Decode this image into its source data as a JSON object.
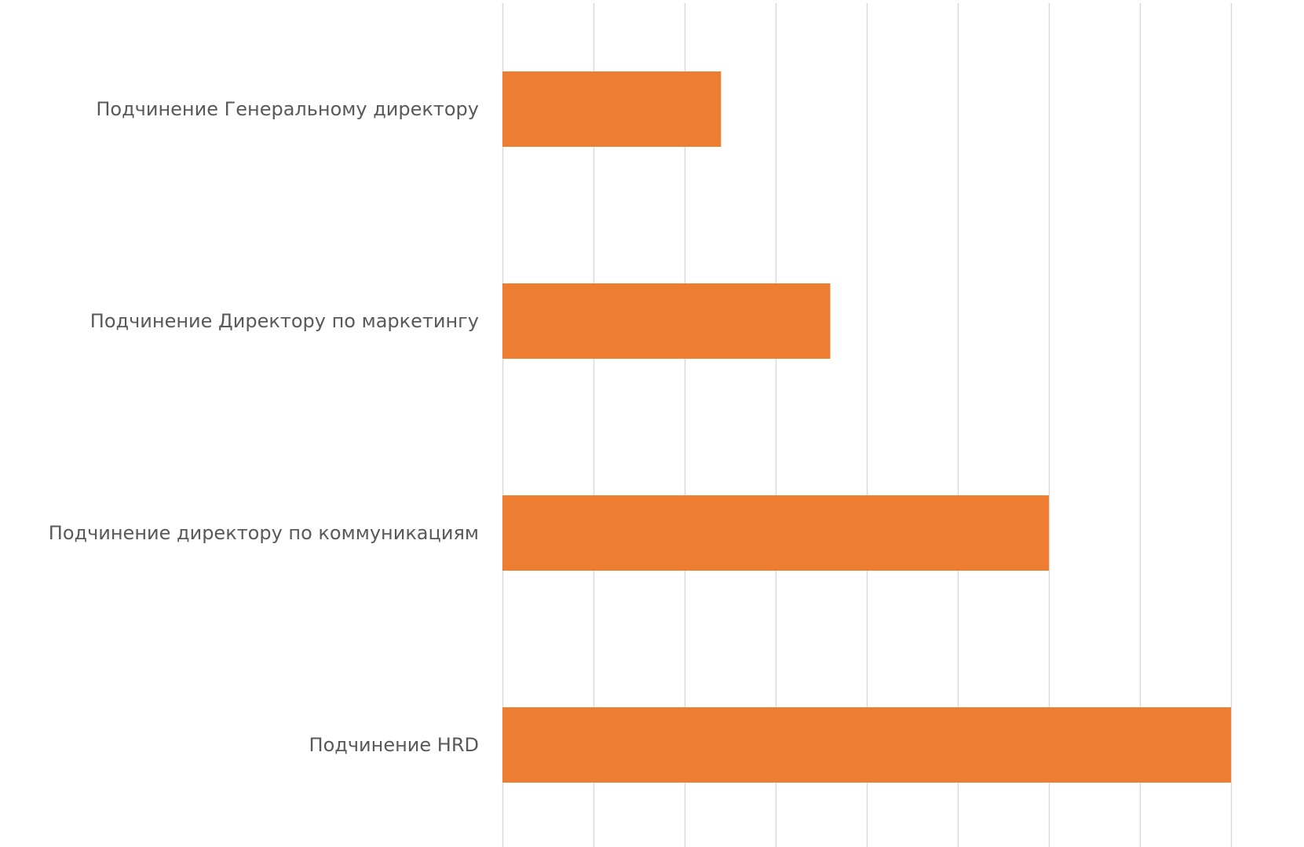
{
  "chart_data": {
    "type": "bar",
    "orientation": "horizontal",
    "title": "",
    "xlabel": "",
    "ylabel": "",
    "categories": [
      "Подчинение Генеральному директору",
      "Подчинение Директору по маркетингу",
      "Подчинение директору по коммуникациям",
      "Подчинение HRD"
    ],
    "values": [
      2.4,
      3.6,
      6.0,
      8.0
    ],
    "xlim": [
      0,
      8
    ],
    "x_gridline_step": 1,
    "grid": true,
    "tick_labels_visible": false,
    "legend": "none",
    "colors": {
      "bar": "#ED7D31",
      "grid": "#D9D9D9",
      "label": "#595959"
    }
  }
}
